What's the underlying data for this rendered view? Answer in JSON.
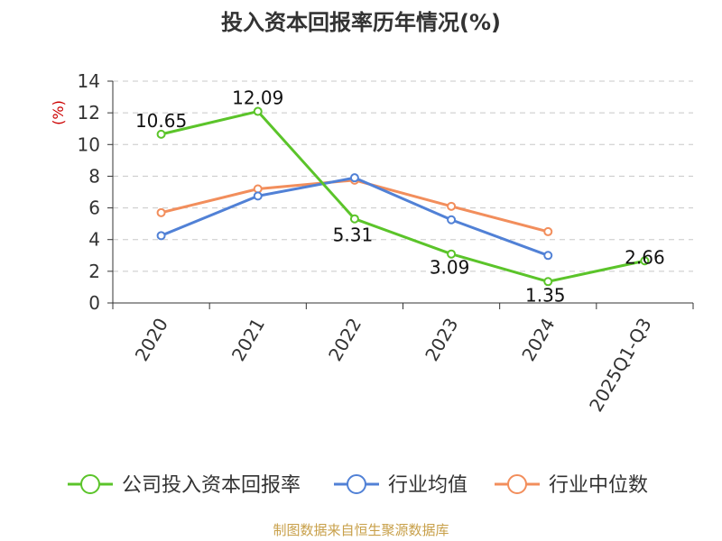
{
  "chart_data": {
    "type": "line",
    "title": "投入资本回报率历年情况(%)",
    "ylabel": "(%)",
    "xlabel": "",
    "categories": [
      "2020",
      "2021",
      "2022",
      "2023",
      "2024",
      "2025Q1-Q3"
    ],
    "ylim": [
      0,
      14
    ],
    "yticks": [
      0,
      2,
      4,
      6,
      8,
      10,
      12,
      14
    ],
    "grid": true,
    "legend": "bottom",
    "series": [
      {
        "name": "公司投入资本回报率",
        "color": "#5bc42a",
        "values": [
          10.65,
          12.09,
          5.31,
          3.09,
          1.35,
          2.66
        ],
        "labels": [
          "10.65",
          "12.09",
          "5.31",
          "3.09",
          "1.35",
          "2.66"
        ]
      },
      {
        "name": "行业均值",
        "color": "#5181d6",
        "values": [
          4.25,
          6.75,
          7.9,
          5.25,
          3.0,
          null
        ]
      },
      {
        "name": "行业中位数",
        "color": "#f28e5c",
        "values": [
          5.7,
          7.2,
          7.75,
          6.1,
          4.5,
          null
        ]
      }
    ]
  },
  "source": "制图数据来自恒生聚源数据库"
}
